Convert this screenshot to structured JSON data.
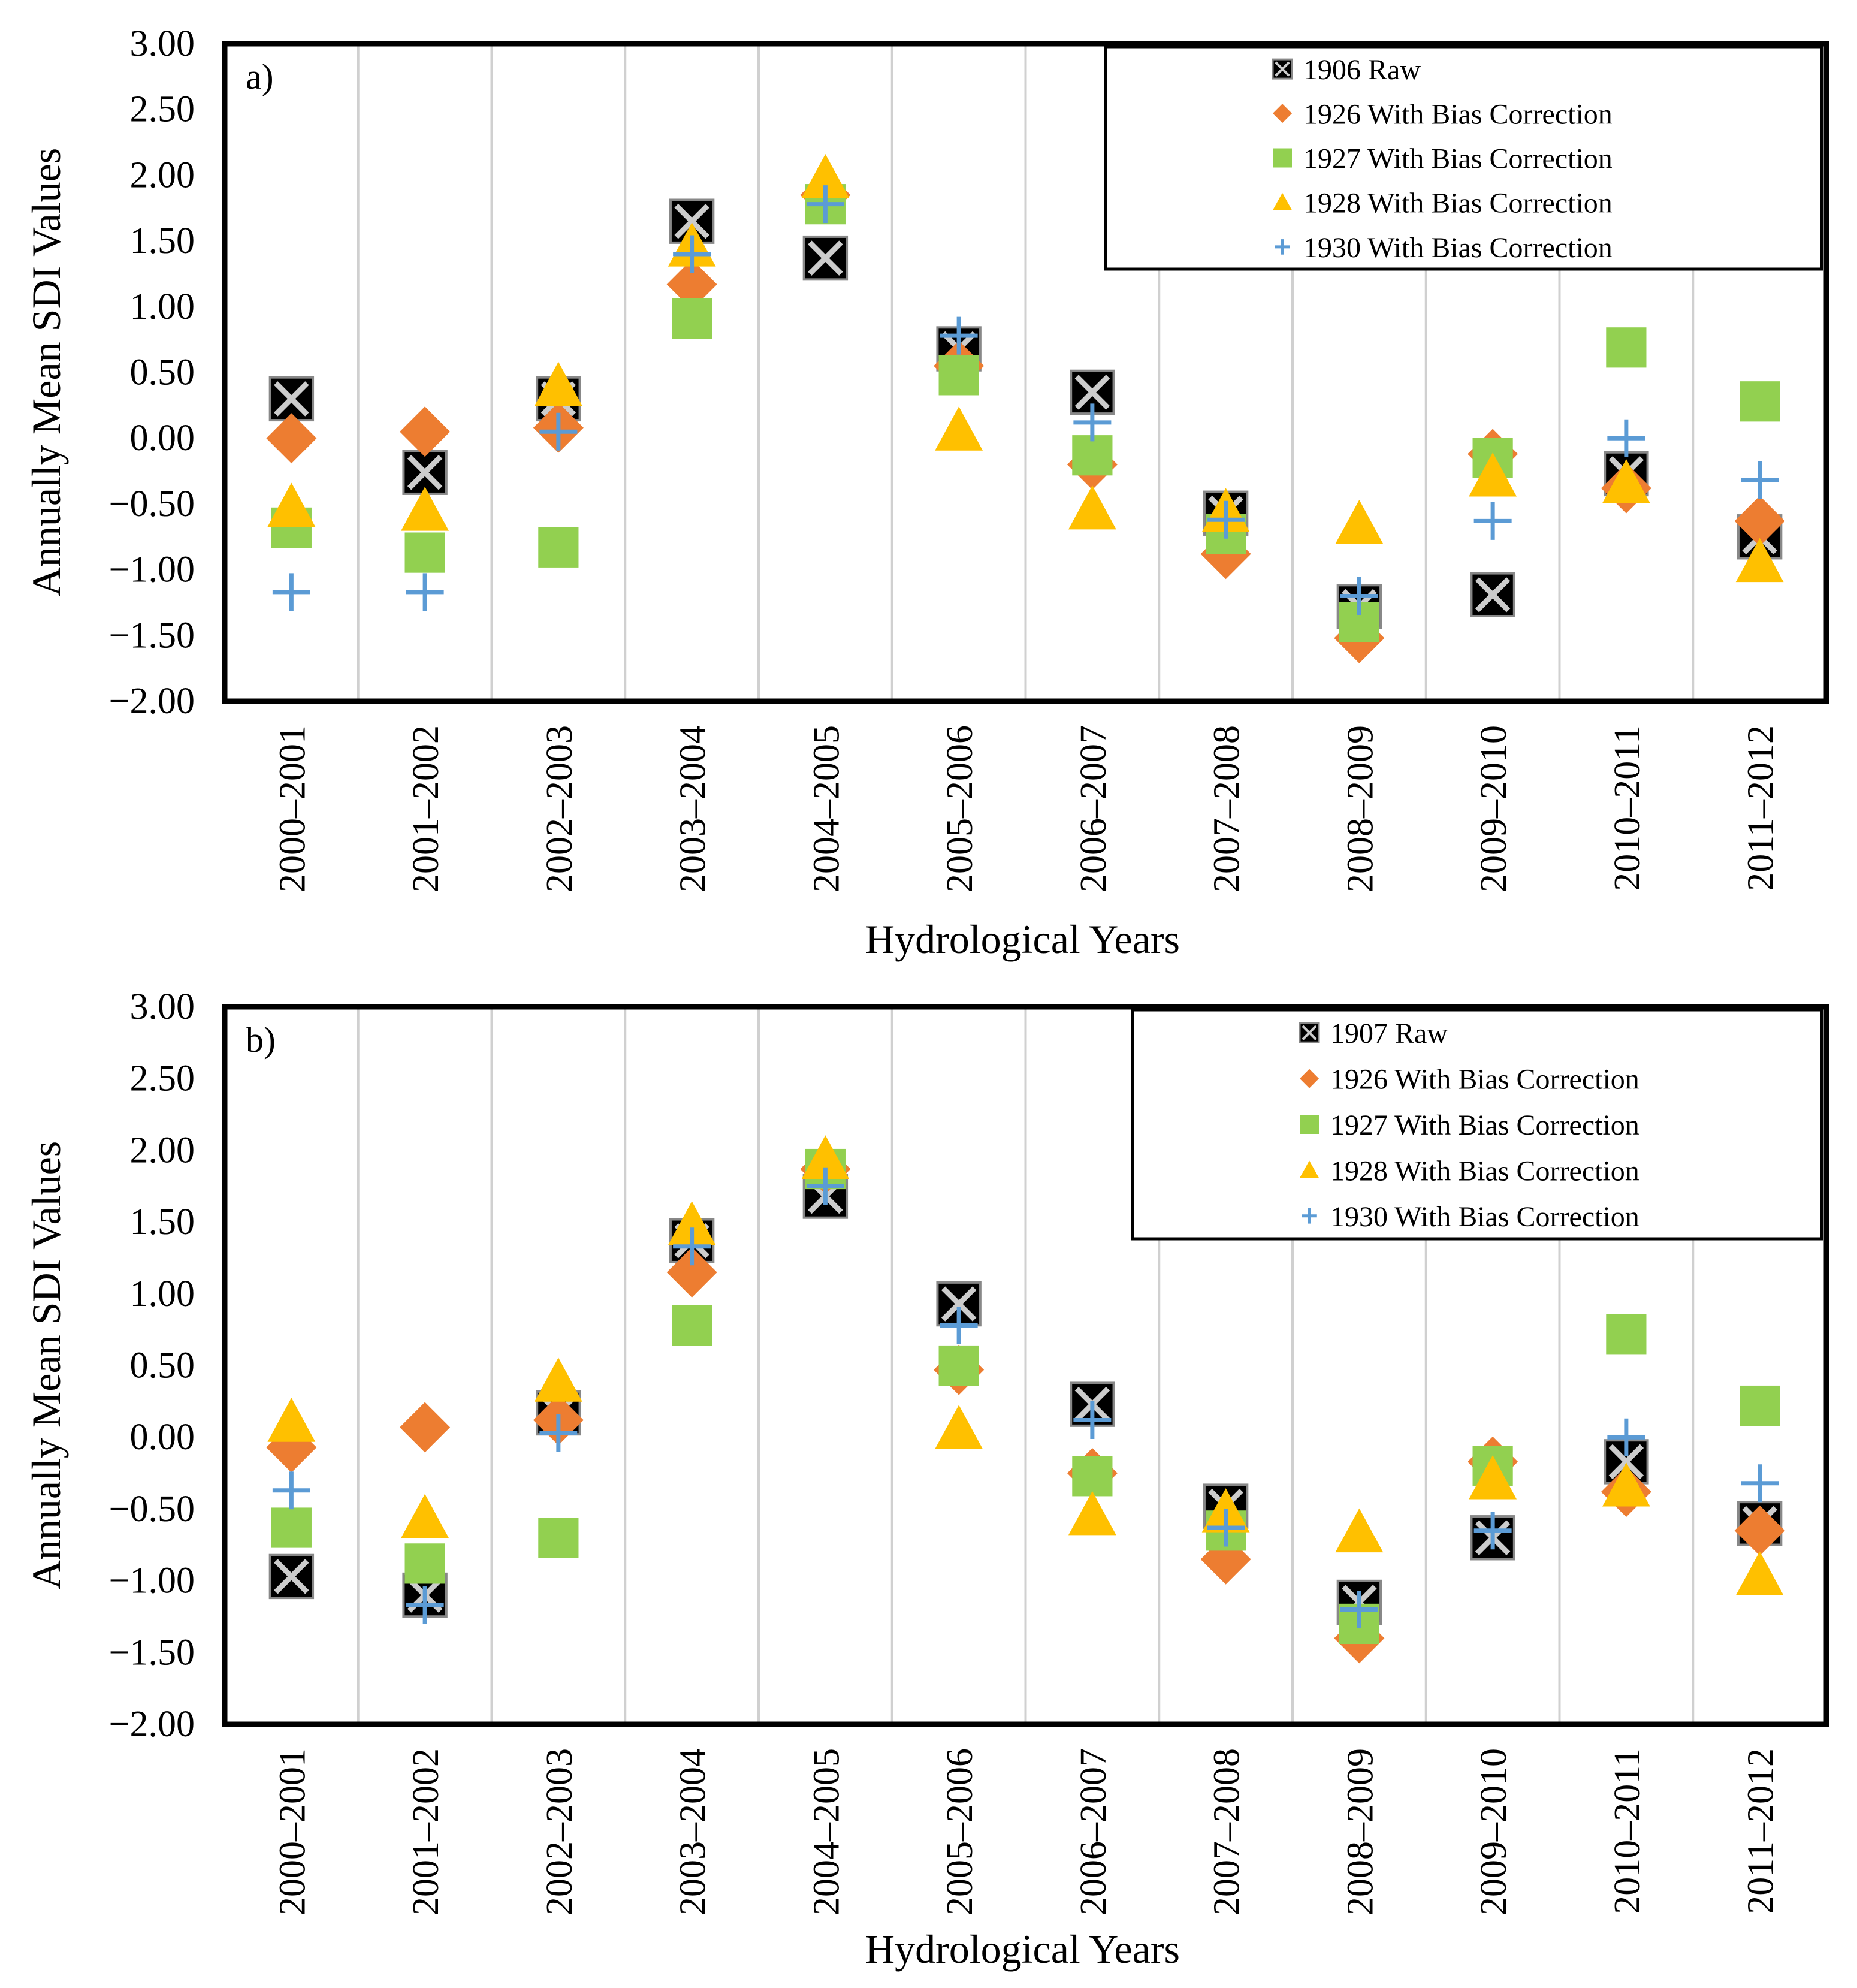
{
  "colors": {
    "raw": "#000000",
    "s1926": "#ED7D31",
    "s1927": "#92D050",
    "s1928": "#FFC000",
    "s1930": "#5B9BD5",
    "grid": "#d0d0d0"
  },
  "chart_data": [
    {
      "type": "scatter",
      "panel_label": "a)",
      "xlabel": "Hydrological Years",
      "ylabel": "Annually Mean SDI Values",
      "ylim": [
        -2.0,
        3.0
      ],
      "ytick_step": 0.5,
      "y_ticks": [
        "3.00",
        "2.50",
        "2.00",
        "1.50",
        "1.00",
        "0.50",
        "0.00",
        "-0.50",
        "-1.00",
        "-1.50",
        "-2.00"
      ],
      "categories": [
        "2000–2001",
        "2001–2002",
        "2002–2003",
        "2003–2004",
        "2004–2005",
        "2005–2006",
        "2006–2007",
        "2007–2008",
        "2008–2009",
        "2009–2010",
        "2010–2011",
        "2011–2012"
      ],
      "legend_position": "top-right",
      "grid": "vertical",
      "series": [
        {
          "name": "1906 Raw",
          "marker": "xbox",
          "color_key": "raw",
          "values": [
            0.3,
            -0.26,
            0.3,
            1.65,
            1.37,
            0.68,
            0.35,
            -0.57,
            -1.28,
            -1.19,
            -0.27,
            -0.75
          ]
        },
        {
          "name": "1926 With Bias Correction",
          "marker": "diamond",
          "color_key": "s1926",
          "values": [
            0.0,
            0.05,
            0.08,
            1.17,
            1.85,
            0.55,
            -0.2,
            -0.88,
            -1.52,
            -0.12,
            -0.38,
            -0.63
          ]
        },
        {
          "name": "1927 With Bias Correction",
          "marker": "square",
          "color_key": "s1927",
          "values": [
            -0.68,
            -0.87,
            -0.83,
            0.91,
            1.78,
            0.48,
            -0.13,
            -0.73,
            -1.4,
            -0.15,
            0.69,
            0.28
          ]
        },
        {
          "name": "1928 With Bias Correction",
          "marker": "triangle",
          "color_key": "s1928",
          "values": [
            -0.53,
            -0.56,
            0.39,
            1.45,
            1.97,
            0.05,
            -0.55,
            -0.57,
            -0.66,
            -0.3,
            -0.35,
            -0.95
          ]
        },
        {
          "name": "1930 With Bias Correction",
          "marker": "plus",
          "color_key": "s1930",
          "values": [
            -1.17,
            -1.17,
            0.05,
            1.4,
            1.78,
            0.78,
            0.12,
            -0.62,
            -1.2,
            -0.63,
            0.0,
            -0.32
          ]
        }
      ]
    },
    {
      "type": "scatter",
      "panel_label": "b)",
      "xlabel": "Hydrological Years",
      "ylabel": "Annually Mean SDI Values",
      "ylim": [
        -2.0,
        3.0
      ],
      "ytick_step": 0.5,
      "y_ticks": [
        "3.00",
        "2.50",
        "2.00",
        "1.50",
        "1.00",
        "0.50",
        "0.00",
        "-0.50",
        "-1.00",
        "-1.50",
        "-2.00"
      ],
      "categories": [
        "2000–2001",
        "2001–2002",
        "2002–2003",
        "2003–2004",
        "2004–2005",
        "2005–2006",
        "2006–2007",
        "2007–2008",
        "2008–2009",
        "2009–2010",
        "2010–2011",
        "2011–2012"
      ],
      "legend_position": "top-right",
      "grid": "vertical",
      "series": [
        {
          "name": "1907 Raw",
          "marker": "xbox",
          "color_key": "raw",
          "values": [
            -0.97,
            -1.1,
            0.17,
            1.37,
            1.68,
            0.93,
            0.23,
            -0.48,
            -1.15,
            -0.7,
            -0.17,
            -0.6
          ]
        },
        {
          "name": "1926 With Bias Correction",
          "marker": "diamond",
          "color_key": "s1926",
          "values": [
            -0.07,
            0.07,
            0.12,
            1.15,
            1.87,
            0.47,
            -0.25,
            -0.85,
            -1.4,
            -0.17,
            -0.38,
            -0.65
          ]
        },
        {
          "name": "1927 With Bias Correction",
          "marker": "square",
          "color_key": "s1927",
          "values": [
            -0.63,
            -0.88,
            -0.7,
            0.78,
            1.87,
            0.5,
            -0.27,
            -0.65,
            -1.3,
            -0.2,
            0.72,
            0.22
          ]
        },
        {
          "name": "1928 With Bias Correction",
          "marker": "triangle",
          "color_key": "s1928",
          "values": [
            0.1,
            -0.57,
            0.38,
            1.47,
            1.93,
            0.05,
            -0.55,
            -0.53,
            -0.67,
            -0.3,
            -0.35,
            -0.97
          ]
        },
        {
          "name": "1930 With Bias Correction",
          "marker": "plus",
          "color_key": "s1930",
          "values": [
            -0.37,
            -1.17,
            0.03,
            1.33,
            1.75,
            0.78,
            0.12,
            -0.63,
            -1.2,
            -0.65,
            0.0,
            -0.32
          ]
        }
      ]
    }
  ]
}
